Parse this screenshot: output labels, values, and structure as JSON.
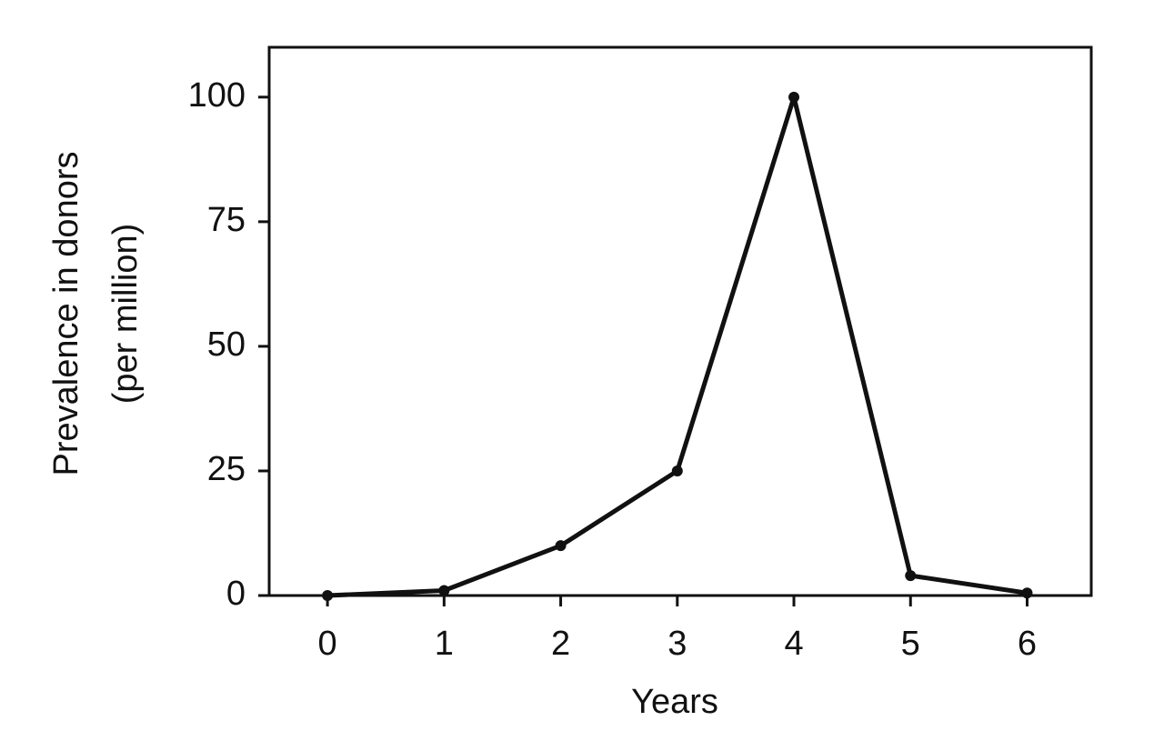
{
  "chart_data": {
    "type": "line",
    "x": [
      0,
      1,
      2,
      3,
      4,
      5,
      6
    ],
    "series": [
      {
        "name": null,
        "color": "#111111",
        "values": [
          0,
          1,
          10,
          25,
          100,
          4,
          0.5
        ]
      }
    ],
    "xlabel": "Years",
    "ylabel": [
      "Prevalence in donors",
      "(per million)"
    ],
    "xlim": [
      -0.5,
      6.55
    ],
    "xticks": [
      0,
      1,
      2,
      3,
      4,
      5,
      6
    ],
    "ylim": [
      0,
      110
    ],
    "yticks": [
      0,
      25,
      50,
      75,
      100
    ],
    "grid": false
  }
}
